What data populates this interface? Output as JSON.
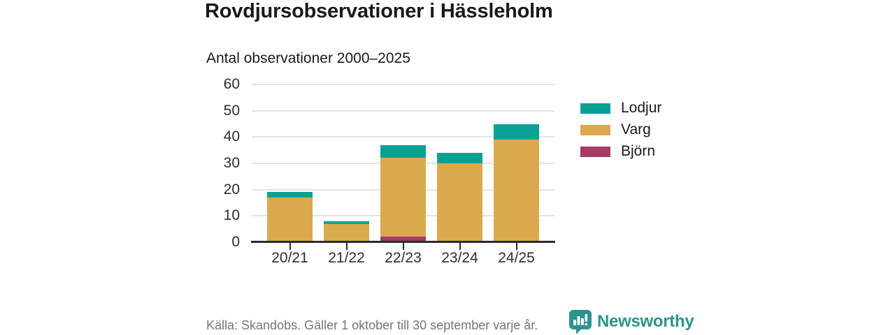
{
  "header": {
    "title": "Rovdjursobservationer i Hässleholm",
    "subtitle": "Antal observationer 2000–2025"
  },
  "footer": {
    "source": "Källa: Skandobs. Gäller 1 oktober till 30 september varje år.",
    "brand": "Newsworthy",
    "logo_icon": "newsworthy-speech-bubble-bar-chart-icon"
  },
  "colors": {
    "lodjur": "#0aa195",
    "varg": "#dbaa4f",
    "bjorn": "#a53b63",
    "brand": "#2b948c",
    "gridline": "#e3e3e3",
    "axis": "#2b2b2b",
    "text_dark": "#1a1a1a",
    "text_muted": "#757575"
  },
  "chart_data": {
    "type": "bar",
    "stacked": true,
    "title": "Rovdjursobservationer i Hässleholm",
    "subtitle": "Antal observationer 2000–2025",
    "categories": [
      "20/21",
      "21/22",
      "22/23",
      "23/24",
      "24/25"
    ],
    "series": [
      {
        "name": "Lodjur",
        "color": "#0aa195",
        "values": [
          2,
          1,
          5,
          4,
          6
        ]
      },
      {
        "name": "Varg",
        "color": "#dbaa4f",
        "values": [
          17,
          7,
          30,
          30,
          39
        ]
      },
      {
        "name": "Björn",
        "color": "#a53b63",
        "values": [
          0,
          0,
          2,
          0,
          0
        ]
      }
    ],
    "stack_order_bottom_to_top": [
      "Björn",
      "Varg",
      "Lodjur"
    ],
    "totals": [
      19,
      8,
      37,
      34,
      45
    ],
    "xlabel": "",
    "ylabel": "",
    "ylim": [
      0,
      60
    ],
    "yticks": [
      0,
      10,
      20,
      30,
      40,
      50,
      60
    ],
    "grid": "horizontal",
    "legend_position": "right",
    "legend_order_top_to_bottom": [
      "Lodjur",
      "Varg",
      "Björn"
    ]
  }
}
